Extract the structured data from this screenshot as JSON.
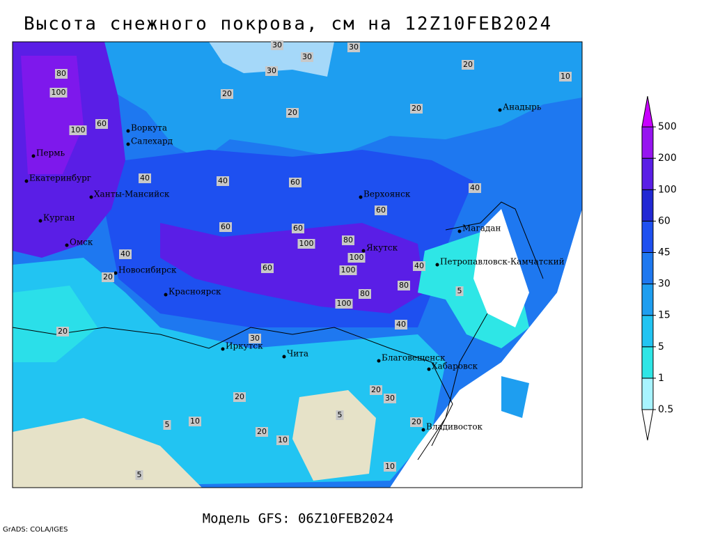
{
  "title": "Высота снежного покрова, см на 12Z10FEB2024",
  "subtitle": "Модель GFS: 06Z10FEB2024",
  "credit": "GrADS: COLA/IGES",
  "cities": [
    "Воркута",
    "Салехард",
    "Пермь",
    "Екатеринбург",
    "Ханты-Мансийск",
    "Курган",
    "Омск",
    "Новосибирск",
    "Красноярск",
    "Иркутск",
    "Чита",
    "Верхоянск",
    "Якутск",
    "Анадырь",
    "Магадан",
    "Петропавловск-Камчатский",
    "Благовещенск",
    "Хабаровск",
    "Владивосток"
  ],
  "legend": {
    "levels": [
      0.5,
      1,
      5,
      15,
      30,
      45,
      60,
      100,
      200,
      500
    ],
    "colors": [
      "#ffffff",
      "#a8f4ff",
      "#2ee6e6",
      "#22c4f2",
      "#1e9ef0",
      "#1e78f0",
      "#1e50f0",
      "#2228d4",
      "#5a1ee6",
      "#9614f0",
      "#c800ff"
    ]
  },
  "contour_labels": [
    30,
    30,
    30,
    20,
    10,
    30,
    20,
    20,
    20,
    80,
    100,
    60,
    100,
    40,
    40,
    60,
    60,
    40,
    60,
    60,
    100,
    80,
    100,
    100,
    80,
    40,
    100,
    80,
    5,
    60,
    40,
    20,
    20,
    20,
    20,
    20,
    10,
    10,
    5,
    5,
    20,
    5,
    10,
    30,
    40,
    30
  ]
}
